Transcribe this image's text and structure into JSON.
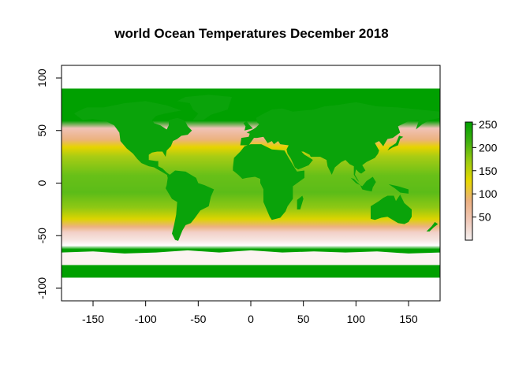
{
  "title": "world Ocean Temperatures December 2018",
  "map": {
    "type": "raster",
    "xlim": [
      -180,
      180
    ],
    "ylim": [
      -112,
      112
    ],
    "data_extent": {
      "lon": [
        -180,
        180
      ],
      "lat": [
        -90,
        90
      ]
    },
    "x_ticks": [
      {
        "value": -150,
        "label": "-150"
      },
      {
        "value": -100,
        "label": "-100"
      },
      {
        "value": -50,
        "label": "-50"
      },
      {
        "value": 0,
        "label": "0"
      },
      {
        "value": 50,
        "label": "50"
      },
      {
        "value": 100,
        "label": "100"
      },
      {
        "value": 150,
        "label": "150"
      }
    ],
    "y_ticks": [
      {
        "value": -100,
        "label": "-100"
      },
      {
        "value": -50,
        "label": "-50"
      },
      {
        "value": 0,
        "label": "0"
      },
      {
        "value": 50,
        "label": "50"
      },
      {
        "value": 100,
        "label": "100"
      }
    ],
    "colors": {
      "land": "#0aa30a",
      "polar_ice": "#ffffff",
      "cold_water": "#f2d0c8",
      "cool_water": "#ecb27e",
      "mid_water": "#e8d400",
      "warm_water": "#9ccc18",
      "hot_water": "#5cbc18"
    }
  },
  "legend": {
    "range": [
      0,
      255
    ],
    "ticks": [
      {
        "value": 50,
        "label": "50"
      },
      {
        "value": 100,
        "label": "100"
      },
      {
        "value": 150,
        "label": "150"
      },
      {
        "value": 200,
        "label": "200"
      },
      {
        "value": 250,
        "label": "250"
      }
    ],
    "gradient": [
      "#f4f0f0",
      "#f0c8b8",
      "#ecb080",
      "#e8d800",
      "#9ccc10",
      "#40b010",
      "#00a000"
    ]
  }
}
